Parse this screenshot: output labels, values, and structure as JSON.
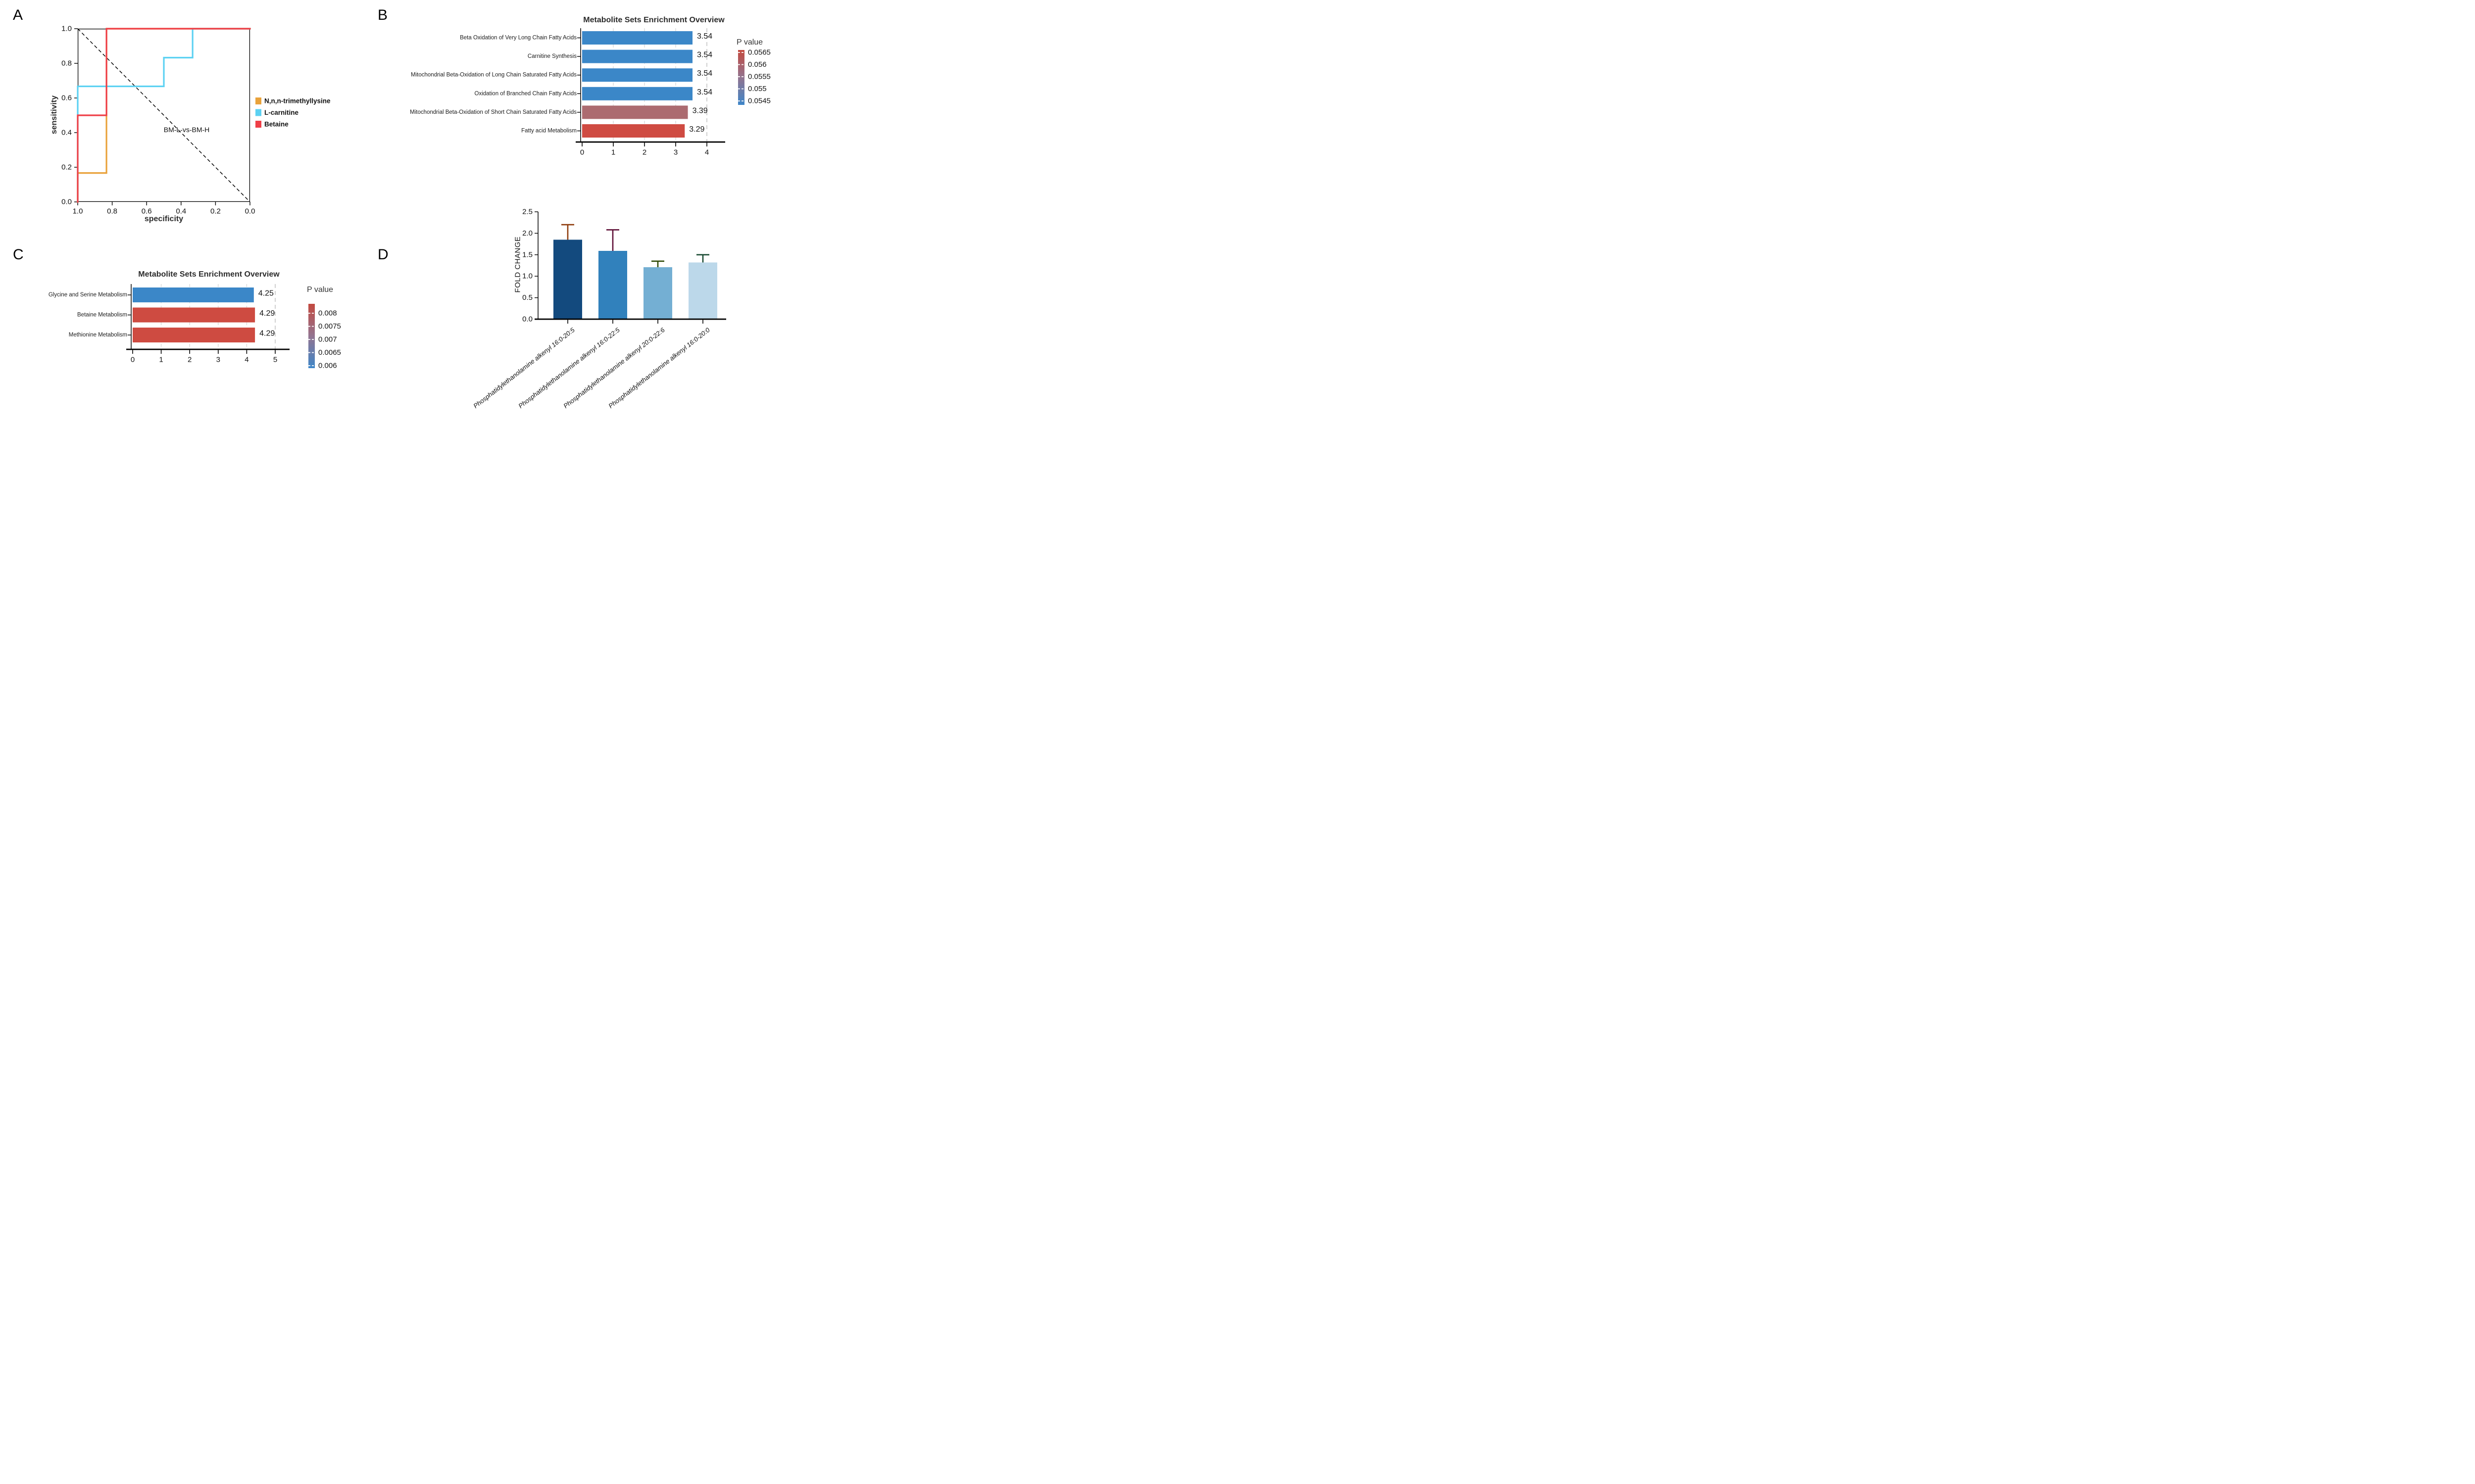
{
  "figure": {
    "background": "#ffffff",
    "panel_letters": [
      "A",
      "B",
      "C",
      "D"
    ]
  },
  "chart_data": [
    {
      "panel": "A",
      "type": "line",
      "subtype": "roc-curve",
      "xlabel": "specificity",
      "ylabel": "sensitivity",
      "x_ticks": [
        "1.0",
        "0.8",
        "0.6",
        "0.4",
        "0.2",
        "0.0"
      ],
      "y_ticks": [
        "1.0",
        "0.8",
        "0.6",
        "0.4",
        "0.2",
        "0.0"
      ],
      "x_axis_direction": "reversed",
      "xlim": [
        1.0,
        0.0
      ],
      "ylim": [
        0.0,
        1.0
      ],
      "grid": false,
      "annotation": "BM-L-vs-BM-H",
      "legend_position": "right",
      "series": [
        {
          "name": "N,n,n-trimethyllysine",
          "color": "#E9A23B",
          "points_spec_sens": [
            [
              1.0,
              0.0
            ],
            [
              1.0,
              0.167
            ],
            [
              0.833,
              0.167
            ],
            [
              0.833,
              1.0
            ],
            [
              0.0,
              1.0
            ]
          ]
        },
        {
          "name": "L-carnitine",
          "color": "#5CD1F2",
          "points_spec_sens": [
            [
              1.0,
              0.0
            ],
            [
              1.0,
              0.667
            ],
            [
              0.5,
              0.667
            ],
            [
              0.5,
              0.833
            ],
            [
              0.333,
              0.833
            ],
            [
              0.333,
              1.0
            ],
            [
              0.0,
              1.0
            ]
          ]
        },
        {
          "name": "Betaine",
          "color": "#EF3F47",
          "points_spec_sens": [
            [
              1.0,
              0.0
            ],
            [
              1.0,
              0.5
            ],
            [
              0.833,
              0.5
            ],
            [
              0.833,
              1.0
            ],
            [
              0.0,
              1.0
            ]
          ]
        }
      ],
      "reference_line": {
        "style": "dashed",
        "color": "#000000",
        "from_spec_sens": [
          1.0,
          1.0
        ],
        "to_spec_sens": [
          0.0,
          0.0
        ]
      }
    },
    {
      "panel": "B",
      "type": "bar",
      "orientation": "horizontal",
      "title": "Metabolite Sets Enrichment Overview",
      "categories": [
        "Beta Oxidation of Very Long Chain Fatty Acids",
        "Carnitine Synthesis",
        "Mitochondrial Beta-Oxidation of Long Chain Saturated Fatty Acids",
        "Oxidation of Branched Chain Fatty Acids",
        "Mitochondrial Beta-Oxidation of Short Chain Saturated Fatty Acids",
        "Fatty acid Metabolism"
      ],
      "values": [
        3.54,
        3.54,
        3.54,
        3.54,
        3.39,
        3.29
      ],
      "value_labels": [
        "3.54",
        "3.54",
        "3.54",
        "3.54",
        "3.39",
        "3.29"
      ],
      "bar_colors": [
        "#3B87C8",
        "#3B87C8",
        "#3B87C8",
        "#3B87C8",
        "#AC6B70",
        "#CF4B42"
      ],
      "x_ticks": [
        "0",
        "1",
        "2",
        "3",
        "4"
      ],
      "xlim": [
        0,
        4.55
      ],
      "grid": "dashed vertical gridlines",
      "legend": {
        "title": "P value",
        "tick_labels": [
          "0.0565",
          "0.056",
          "0.0555",
          "0.055",
          "0.0545"
        ],
        "gradient_top_color": "#C3493F",
        "gradient_mid_color": "#937490",
        "gradient_bottom_color": "#3E86C8"
      }
    },
    {
      "panel": "C",
      "type": "bar",
      "orientation": "horizontal",
      "title": "Metabolite Sets Enrichment Overview",
      "categories": [
        "Glycine and Serine Metabolism",
        "Betaine Metabolism",
        "Methionine Metabolism"
      ],
      "values": [
        4.25,
        4.29,
        4.29
      ],
      "value_labels": [
        "4.25",
        "4.29",
        "4.29"
      ],
      "bar_colors": [
        "#3B87C8",
        "#CE4B41",
        "#CE4B41"
      ],
      "x_ticks": [
        "0",
        "1",
        "2",
        "3",
        "4",
        "5"
      ],
      "xlim": [
        0,
        5.55
      ],
      "grid": "dashed vertical gridlines",
      "legend": {
        "title": "P value",
        "tick_labels": [
          "0.008",
          "0.0075",
          "0.007",
          "0.0065",
          "0.006"
        ],
        "gradient_top_color": "#C3493F",
        "gradient_mid_color": "#937490",
        "gradient_bottom_color": "#3E86C8"
      }
    },
    {
      "panel": "D",
      "type": "bar",
      "orientation": "vertical",
      "ylabel": "FOLD CHANGE",
      "categories": [
        "Phosphatidylethanolamine alkenyl 16:0-20:5",
        "Phosphatidylethanolamine alkenyl 16:0-22:5",
        "Phosphatidylethanolamine alkenyl 20:0-22:6",
        "Phosphatidylethanolamine alkenyl 16:0-20:0"
      ],
      "values": [
        1.85,
        1.59,
        1.21,
        1.32
      ],
      "error_upper_tops": [
        2.2,
        2.08,
        1.35,
        1.5
      ],
      "bar_colors": [
        "#134A7E",
        "#3181BC",
        "#74AFD3",
        "#BCD8EA"
      ],
      "error_colors": [
        "#8E3B0B",
        "#5E0F36",
        "#2F4A06",
        "#1A4B33"
      ],
      "y_ticks": [
        "0.0",
        "0.5",
        "1.0",
        "1.5",
        "2.0",
        "2.5"
      ],
      "ylim": [
        0,
        2.5
      ],
      "grid": false
    }
  ]
}
